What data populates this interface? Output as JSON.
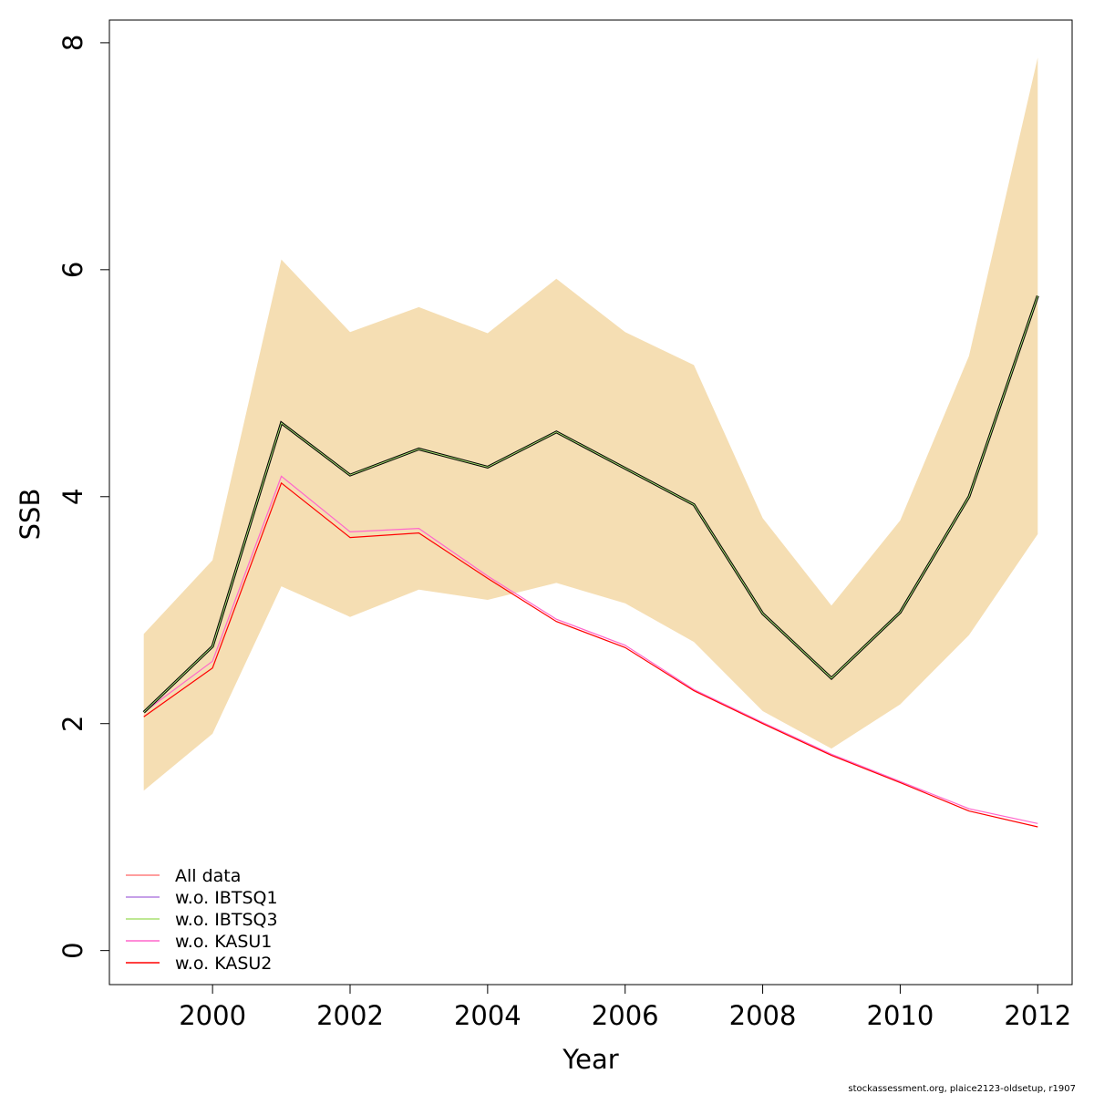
{
  "chart_data": {
    "type": "line",
    "xlabel": "Year",
    "ylabel": "SSB",
    "xlim": [
      1998.5,
      2012.5
    ],
    "ylim": [
      -0.3,
      8.2
    ],
    "x_ticks": [
      2000,
      2002,
      2004,
      2006,
      2008,
      2010,
      2012
    ],
    "y_ticks": [
      0,
      2,
      4,
      6,
      8
    ],
    "x_tick_labels": [
      "2000",
      "2002",
      "2004",
      "2006",
      "2008",
      "2010",
      "2012"
    ],
    "y_tick_labels": [
      "0",
      "2",
      "4",
      "6",
      "8"
    ],
    "years": [
      1999,
      2000,
      2001,
      2002,
      2003,
      2004,
      2005,
      2006,
      2007,
      2008,
      2009,
      2010,
      2011,
      2012
    ],
    "band": {
      "lower": [
        1.41,
        1.91,
        3.21,
        2.94,
        3.18,
        3.09,
        3.24,
        3.06,
        2.72,
        2.11,
        1.78,
        2.17,
        2.78,
        3.67
      ],
      "upper": [
        2.79,
        3.44,
        6.09,
        5.45,
        5.67,
        5.44,
        5.92,
        5.45,
        5.16,
        3.81,
        3.04,
        3.79,
        5.24,
        7.87
      ],
      "color": "#f5deb3"
    },
    "main_line": {
      "values": [
        2.1,
        2.68,
        4.65,
        4.19,
        4.42,
        4.26,
        4.57,
        4.25,
        3.93,
        2.97,
        2.4,
        2.98,
        4.0,
        5.77
      ],
      "color": "#000000"
    },
    "series": [
      {
        "name": "All data",
        "color": "#ff7f7f",
        "values": [
          2.1,
          2.68,
          4.65,
          4.19,
          4.42,
          4.26,
          4.57,
          4.25,
          3.93,
          2.97,
          2.4,
          2.98,
          4.0,
          5.77
        ]
      },
      {
        "name": "w.o. IBTSQ1",
        "color": "#b380e0",
        "values": [
          2.1,
          2.68,
          4.65,
          4.19,
          4.42,
          4.26,
          4.57,
          4.25,
          3.93,
          2.97,
          2.4,
          2.98,
          4.0,
          5.77
        ]
      },
      {
        "name": "w.o. IBTSQ3",
        "color": "#a8e070",
        "values": [
          2.1,
          2.68,
          4.65,
          4.19,
          4.42,
          4.26,
          4.57,
          4.25,
          3.93,
          2.97,
          2.4,
          2.98,
          4.0,
          5.77
        ]
      },
      {
        "name": "w.o. KASU1",
        "color": "#ff66cc",
        "values": [
          2.1,
          2.55,
          4.18,
          3.69,
          3.72,
          3.3,
          2.92,
          2.69,
          2.3,
          2.01,
          1.73,
          1.49,
          1.25,
          1.12
        ]
      },
      {
        "name": "w.o. KASU2",
        "color": "#ff0000",
        "values": [
          2.06,
          2.49,
          4.12,
          3.64,
          3.68,
          3.28,
          2.9,
          2.67,
          2.29,
          2.0,
          1.72,
          1.48,
          1.23,
          1.09
        ]
      }
    ],
    "legend_position": "bottom-left"
  },
  "footer": "stockassessment.org, plaice2123-oldsetup, r1907"
}
